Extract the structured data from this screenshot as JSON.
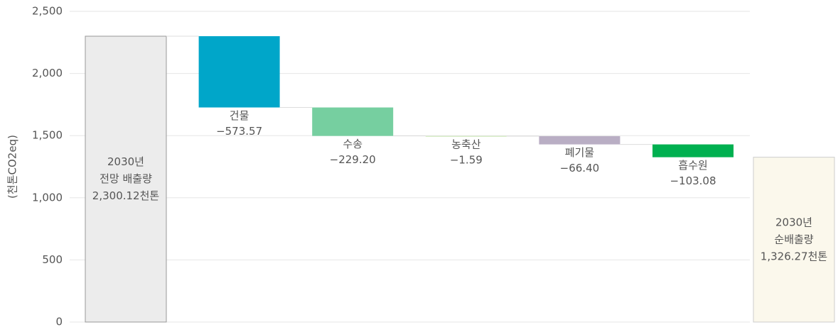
{
  "chart_data": {
    "type": "waterfall",
    "y_label": "(천톤CO2eq)",
    "categories": [
      [
        "2030년",
        "전망 배출량"
      ],
      [
        "건물"
      ],
      [
        "수송"
      ],
      [
        "농축산"
      ],
      [
        "폐기물"
      ],
      [
        "흡수원"
      ],
      [
        "2030년",
        "순배출량"
      ]
    ],
    "values": [
      2300.12,
      -573.57,
      -229.2,
      -1.59,
      -66.4,
      -103.08,
      1326.27
    ],
    "value_labels": [
      "2,300.12천톤",
      "−573.57",
      "−229.20",
      "−1.59",
      "−66.40",
      "−103.08",
      "1,326.27천톤"
    ],
    "colors": [
      "#ececec",
      "#00a6c9",
      "#76cfa0",
      "#c8e6b0",
      "#b9aec4",
      "#00b050",
      "#fbf8ec"
    ],
    "ylim": [
      0,
      2500
    ],
    "yticks": [
      0,
      500,
      {
        "value": 1000,
        "label": "1,000"
      },
      {
        "value": 1500,
        "label": "1,500"
      },
      {
        "value": 2000,
        "label": "2,000"
      },
      {
        "value": 2500,
        "label": "2,500"
      }
    ],
    "grid": true
  }
}
